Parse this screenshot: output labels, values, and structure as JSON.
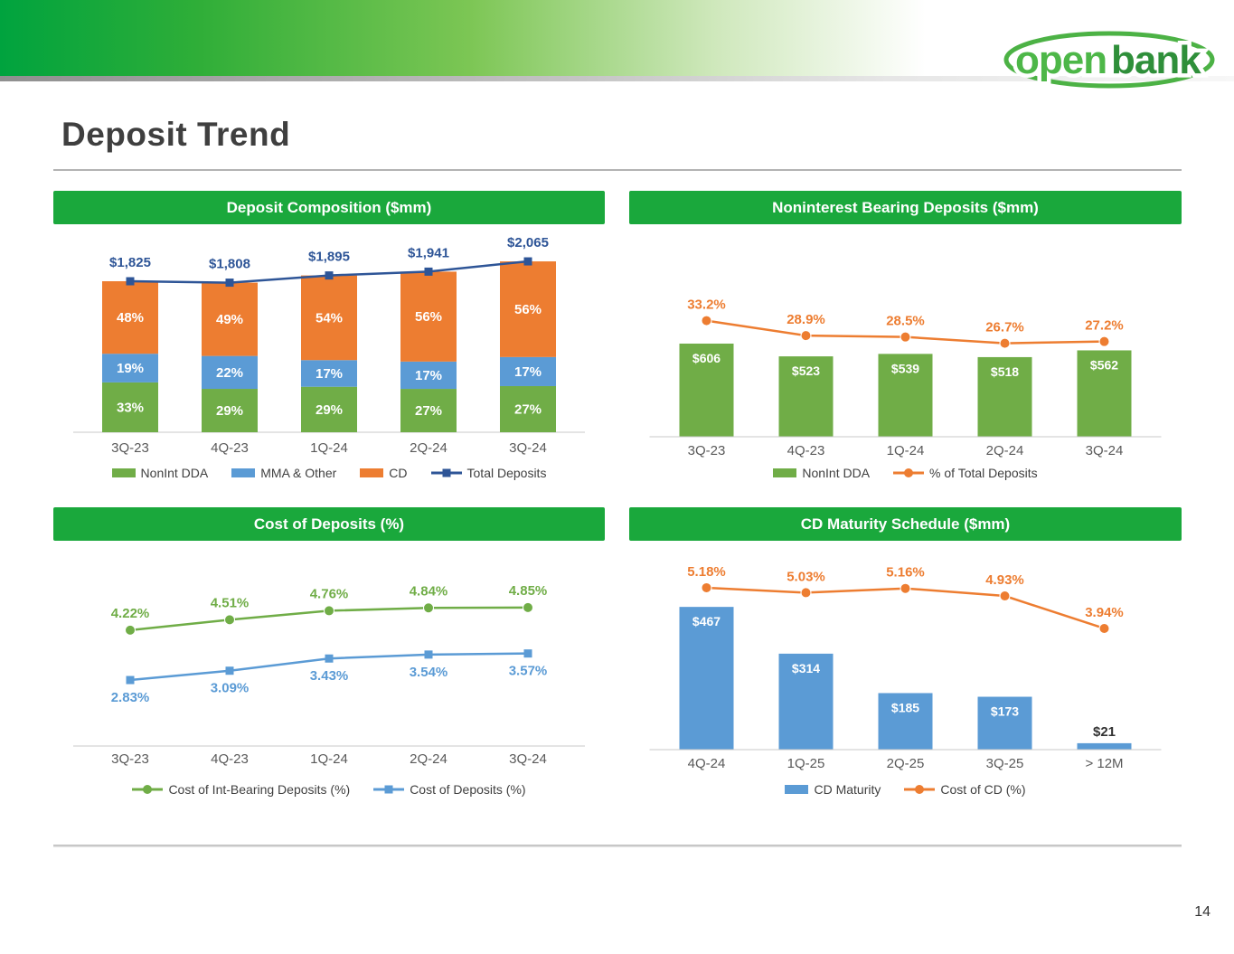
{
  "page": {
    "title": "Deposit Trend",
    "page_number": "14"
  },
  "logo": {
    "word1": "open",
    "word2": "bank"
  },
  "colors": {
    "brand_green": "#1aa83c",
    "bar_green": "#70AD47",
    "bar_blue": "#5B9BD5",
    "bar_orange": "#ED7D31",
    "line_dark_blue": "#2E5597",
    "axis_text": "#595959"
  },
  "chart_data": [
    {
      "id": "deposit-composition",
      "type": "bar",
      "subtype": "stacked-bar-with-line",
      "title": "Deposit Composition ($mm)",
      "categories": [
        "3Q-23",
        "4Q-23",
        "1Q-24",
        "2Q-24",
        "3Q-24"
      ],
      "stack_series": [
        {
          "name": "NonInt DDA",
          "color": "#70AD47",
          "values_pct": [
            33,
            29,
            29,
            27,
            27
          ]
        },
        {
          "name": "MMA & Other",
          "color": "#5B9BD5",
          "values_pct": [
            19,
            22,
            17,
            17,
            17
          ]
        },
        {
          "name": "CD",
          "color": "#ED7D31",
          "values_pct": [
            48,
            49,
            54,
            56,
            56
          ]
        }
      ],
      "line_series": {
        "name": "Total Deposits",
        "color": "#2E5597",
        "marker": "square",
        "values": [
          1825,
          1808,
          1895,
          1941,
          2065
        ],
        "labels": [
          "$1,825",
          "$1,808",
          "$1,895",
          "$1,941",
          "$2,065"
        ]
      },
      "legend": [
        {
          "label": "NonInt DDA",
          "swatch": "rect",
          "color": "#70AD47"
        },
        {
          "label": "MMA & Other",
          "swatch": "rect",
          "color": "#5B9BD5"
        },
        {
          "label": "CD",
          "swatch": "rect",
          "color": "#ED7D31"
        },
        {
          "label": "Total Deposits",
          "swatch": "line-square",
          "color": "#2E5597"
        }
      ]
    },
    {
      "id": "noninterest-bearing-deposits",
      "type": "bar",
      "subtype": "bar-with-line",
      "title": "Noninterest Bearing Deposits ($mm)",
      "categories": [
        "3Q-23",
        "4Q-23",
        "1Q-24",
        "2Q-24",
        "3Q-24"
      ],
      "bar_series": {
        "name": "NonInt DDA",
        "color": "#70AD47",
        "values": [
          606,
          523,
          539,
          518,
          562
        ],
        "labels": [
          "$606",
          "$523",
          "$539",
          "$518",
          "$562"
        ]
      },
      "line_series": {
        "name": "% of Total Deposits",
        "color": "#ED7D31",
        "marker": "circle",
        "values": [
          33.2,
          28.9,
          28.5,
          26.7,
          27.2
        ],
        "labels": [
          "33.2%",
          "28.9%",
          "28.5%",
          "26.7%",
          "27.2%"
        ]
      },
      "legend": [
        {
          "label": "NonInt DDA",
          "swatch": "rect",
          "color": "#70AD47"
        },
        {
          "label": "% of Total Deposits",
          "swatch": "line-circle",
          "color": "#ED7D31"
        }
      ]
    },
    {
      "id": "cost-of-deposits",
      "type": "line",
      "title": "Cost of Deposits (%)",
      "categories": [
        "3Q-23",
        "4Q-23",
        "1Q-24",
        "2Q-24",
        "3Q-24"
      ],
      "series": [
        {
          "name": "Cost of Int-Bearing Deposits (%)",
          "color": "#70AD47",
          "marker": "circle",
          "label_position": "above",
          "values": [
            4.22,
            4.51,
            4.76,
            4.84,
            4.85
          ],
          "labels": [
            "4.22%",
            "4.51%",
            "4.76%",
            "4.84%",
            "4.85%"
          ]
        },
        {
          "name": "Cost of Deposits (%)",
          "color": "#5B9BD5",
          "marker": "square",
          "label_position": "below",
          "values": [
            2.83,
            3.09,
            3.43,
            3.54,
            3.57
          ],
          "labels": [
            "2.83%",
            "3.09%",
            "3.43%",
            "3.54%",
            "3.57%"
          ]
        }
      ],
      "legend": [
        {
          "label": "Cost of Int-Bearing Deposits (%)",
          "swatch": "line-circle",
          "color": "#70AD47"
        },
        {
          "label": "Cost of Deposits (%)",
          "swatch": "line-square",
          "color": "#5B9BD5"
        }
      ]
    },
    {
      "id": "cd-maturity-schedule",
      "type": "bar",
      "subtype": "bar-with-line",
      "title": "CD Maturity Schedule ($mm)",
      "categories": [
        "4Q-24",
        "1Q-25",
        "2Q-25",
        "3Q-25",
        "> 12M"
      ],
      "bar_series": {
        "name": "CD Maturity",
        "color": "#5B9BD5",
        "values": [
          467,
          314,
          185,
          173,
          21
        ],
        "labels": [
          "$467",
          "$314",
          "$185",
          "$173",
          "$21"
        ]
      },
      "line_series": {
        "name": "Cost of CD (%)",
        "color": "#ED7D31",
        "marker": "circle",
        "values": [
          5.18,
          5.03,
          5.16,
          4.93,
          3.94
        ],
        "labels": [
          "5.18%",
          "5.03%",
          "5.16%",
          "4.93%",
          "3.94%"
        ]
      },
      "legend": [
        {
          "label": "CD Maturity",
          "swatch": "rect",
          "color": "#5B9BD5"
        },
        {
          "label": "Cost of CD (%)",
          "swatch": "line-circle",
          "color": "#ED7D31"
        }
      ]
    }
  ]
}
